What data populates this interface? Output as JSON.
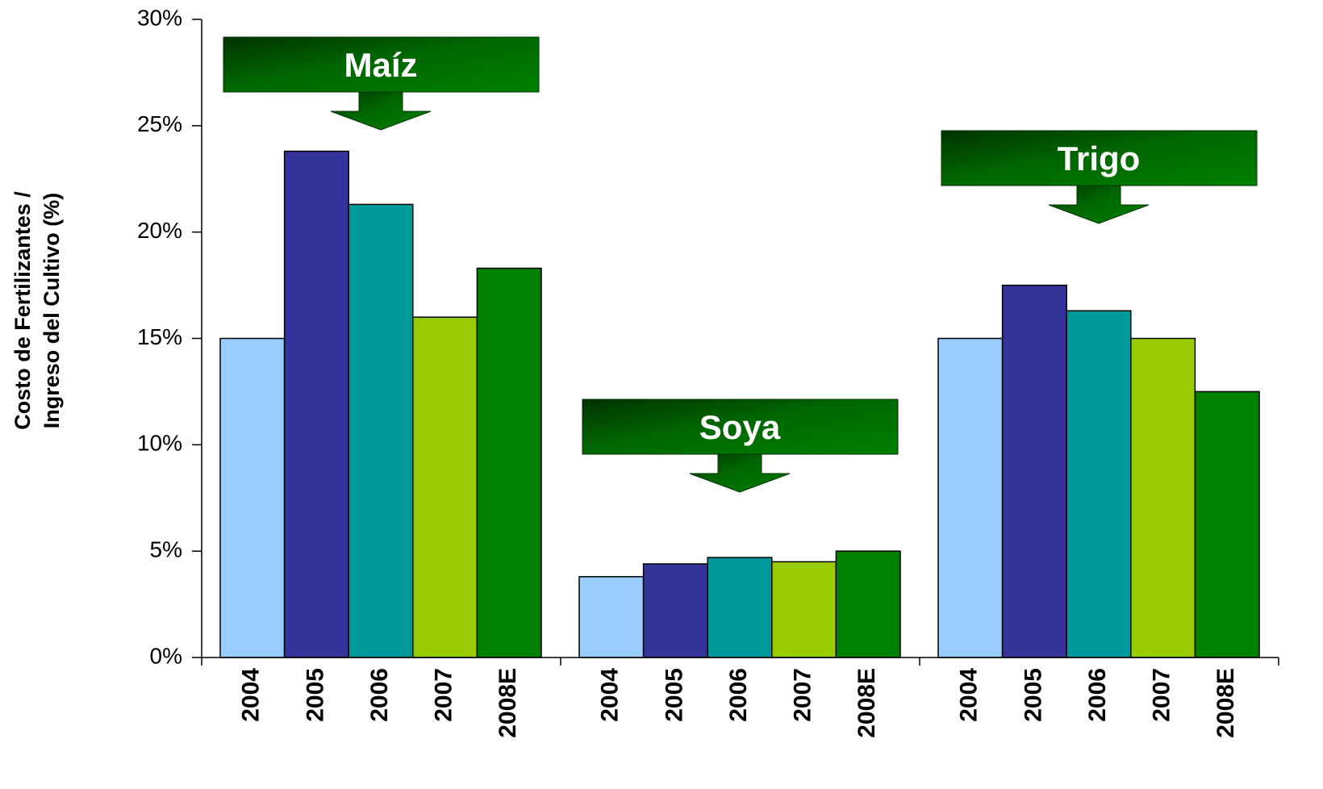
{
  "chart_data": {
    "type": "bar",
    "ylabel": [
      "Costo de Fertilizantes /",
      "Ingreso del Cultivo (%)"
    ],
    "categories": [
      "Maíz",
      "Soya",
      "Trigo"
    ],
    "series": [
      {
        "name": "2004",
        "color": "#99ccff",
        "values": [
          15,
          3.8,
          15
        ]
      },
      {
        "name": "2005",
        "color": "#333399",
        "values": [
          23.8,
          4.4,
          17.5
        ]
      },
      {
        "name": "2006",
        "color": "#009999",
        "values": [
          21.3,
          4.7,
          16.3
        ]
      },
      {
        "name": "2007",
        "color": "#99cc00",
        "values": [
          16,
          4.5,
          15
        ]
      },
      {
        "name": "2008E",
        "color": "#008000",
        "values": [
          18.3,
          5,
          12.5
        ]
      }
    ],
    "ylim": [
      0,
      30
    ],
    "yticks": [
      {
        "value": 0,
        "label": "0%"
      },
      {
        "value": 5,
        "label": "5%"
      },
      {
        "value": 10,
        "label": "10%"
      },
      {
        "value": 15,
        "label": "15%"
      },
      {
        "value": 20,
        "label": "20%"
      },
      {
        "value": 25,
        "label": "25%"
      },
      {
        "value": 30,
        "label": "30%"
      }
    ]
  }
}
